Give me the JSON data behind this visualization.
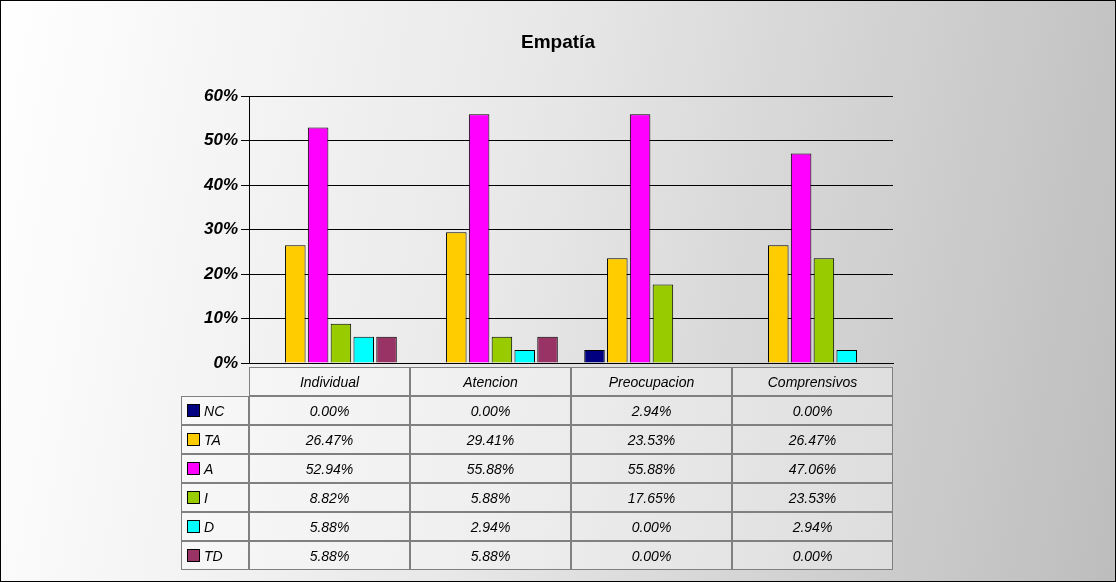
{
  "chart_data": {
    "type": "bar",
    "title": "Empatía",
    "categories": [
      "Individual",
      "Atencion",
      "Preocupacion",
      "Comprensivos"
    ],
    "series": [
      {
        "name": "NC",
        "color": "#000080",
        "values": [
          0,
          0,
          2.94,
          0
        ],
        "value_labels": [
          "0.00%",
          "0.00%",
          "2.94%",
          "0.00%"
        ]
      },
      {
        "name": "TA",
        "color": "#ffcc00",
        "values": [
          26.47,
          29.41,
          23.53,
          26.47
        ],
        "value_labels": [
          "26.47%",
          "29.41%",
          "23.53%",
          "26.47%"
        ]
      },
      {
        "name": "A",
        "color": "#ff00ff",
        "values": [
          52.94,
          55.88,
          55.88,
          47.06
        ],
        "value_labels": [
          "52.94%",
          "55.88%",
          "55.88%",
          "47.06%"
        ]
      },
      {
        "name": "I",
        "color": "#99cc00",
        "values": [
          8.82,
          5.88,
          17.65,
          23.53
        ],
        "value_labels": [
          "8.82%",
          "5.88%",
          "17.65%",
          "23.53%"
        ]
      },
      {
        "name": "D",
        "color": "#00ffff",
        "values": [
          5.88,
          2.94,
          0,
          2.94
        ],
        "value_labels": [
          "5.88%",
          "2.94%",
          "0.00%",
          "2.94%"
        ]
      },
      {
        "name": "TD",
        "color": "#993366",
        "values": [
          5.88,
          5.88,
          0,
          0
        ],
        "value_labels": [
          "5.88%",
          "5.88%",
          "0.00%",
          "0.00%"
        ]
      }
    ],
    "ylim": [
      0,
      60
    ],
    "yticks": [
      {
        "value": 0,
        "label": "0%"
      },
      {
        "value": 10,
        "label": "10%"
      },
      {
        "value": 20,
        "label": "20%"
      },
      {
        "value": 30,
        "label": "30%"
      },
      {
        "value": 40,
        "label": "40%"
      },
      {
        "value": 50,
        "label": "50%"
      },
      {
        "value": 60,
        "label": "60%"
      }
    ],
    "grid": "y",
    "legend": "bottom left"
  }
}
